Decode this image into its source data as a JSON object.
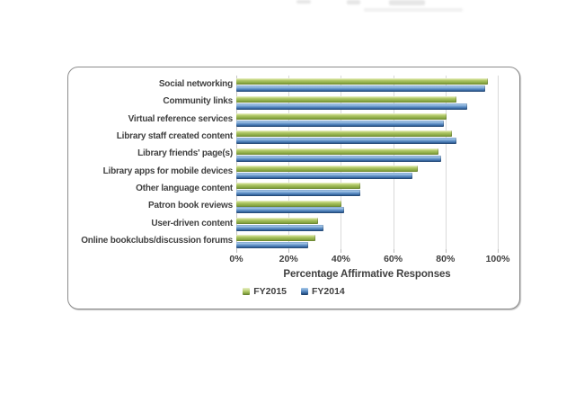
{
  "chart_data": {
    "type": "bar",
    "orientation": "horizontal",
    "title": "",
    "xlabel": "Percentage Affirmative Responses",
    "ylabel": "",
    "xlim": [
      0,
      100
    ],
    "xticks": [
      "0%",
      "20%",
      "40%",
      "60%",
      "80%",
      "100%"
    ],
    "grid": "vertical-major-light",
    "legend_position": "bottom-center",
    "categories": [
      "Social networking",
      "Community links",
      "Virtual reference services",
      "Library staff created content",
      "Library friends' page(s)",
      "Library apps for mobile devices",
      "Other language content",
      "Patron book reviews",
      "User-driven content",
      "Online bookclubs/discussion forums"
    ],
    "series": [
      {
        "name": "FY2015",
        "color": "#9BBB59",
        "values": [
          96,
          84,
          80,
          82,
          77,
          69,
          47,
          40,
          31,
          30
        ]
      },
      {
        "name": "FY2014",
        "color": "#4F81BD",
        "values": [
          95,
          88,
          79,
          84,
          78,
          67,
          47,
          41,
          33,
          27
        ]
      }
    ],
    "colors": {
      "gridline": "#D9D9D9",
      "text": "#404040",
      "panel_border": "#8C8C8C"
    }
  }
}
